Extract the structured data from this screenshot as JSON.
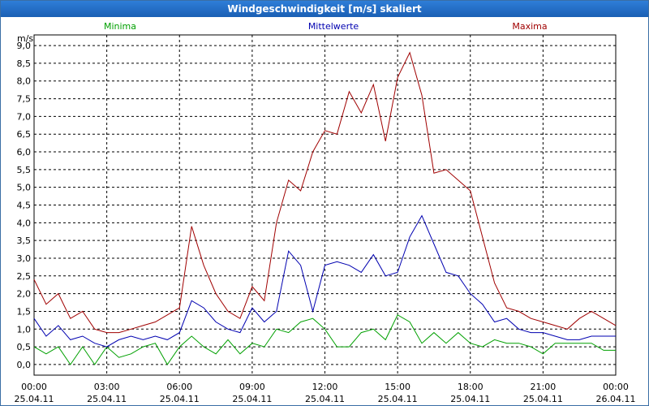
{
  "window": {
    "title": "Windgeschwindigkeit [m/s] skaliert"
  },
  "chart_data": {
    "type": "line",
    "title": "Windgeschwindigkeit [m/s] skaliert",
    "ylabel": "m/s",
    "xlabel": "",
    "ylim": [
      -0.3,
      9.3
    ],
    "xlim": [
      0,
      24
    ],
    "grid": true,
    "legend_position": "top",
    "y_ticks": [
      "0,0",
      "0,5",
      "1,0",
      "1,5",
      "2,0",
      "2,5",
      "3,0",
      "3,5",
      "4,0",
      "4,5",
      "5,0",
      "5,5",
      "6,0",
      "6,5",
      "7,0",
      "7,5",
      "8,0",
      "8,5",
      "9,0"
    ],
    "x_ticks": [
      {
        "time": "00:00",
        "date": "25.04.11"
      },
      {
        "time": "03:00",
        "date": "25.04.11"
      },
      {
        "time": "06:00",
        "date": "25.04.11"
      },
      {
        "time": "09:00",
        "date": "25.04.11"
      },
      {
        "time": "12:00",
        "date": "25.04.11"
      },
      {
        "time": "15:00",
        "date": "25.04.11"
      },
      {
        "time": "18:00",
        "date": "25.04.11"
      },
      {
        "time": "21:00",
        "date": "25.04.11"
      },
      {
        "time": "00:00",
        "date": "26.04.11"
      }
    ],
    "series": [
      {
        "name": "Minima",
        "color": "#00a000",
        "x": [
          0,
          0.5,
          1,
          1.5,
          2,
          2.5,
          3,
          3.5,
          4,
          4.5,
          5,
          5.5,
          6,
          6.5,
          7,
          7.5,
          8,
          8.5,
          9,
          9.5,
          10,
          10.5,
          11,
          11.5,
          12,
          12.5,
          13,
          13.5,
          14,
          14.5,
          15,
          15.5,
          16,
          16.5,
          17,
          17.5,
          18,
          18.5,
          19,
          19.5,
          20,
          20.5,
          21,
          21.5,
          22,
          22.5,
          23,
          23.5,
          24
        ],
        "values": [
          0.5,
          0.3,
          0.5,
          0.0,
          0.5,
          0.0,
          0.5,
          0.2,
          0.3,
          0.5,
          0.6,
          0.0,
          0.5,
          0.8,
          0.5,
          0.3,
          0.7,
          0.3,
          0.6,
          0.5,
          1.0,
          0.9,
          1.2,
          1.3,
          1.0,
          0.5,
          0.5,
          0.9,
          1.0,
          0.7,
          1.4,
          1.2,
          0.6,
          0.9,
          0.6,
          0.9,
          0.6,
          0.5,
          0.7,
          0.6,
          0.6,
          0.5,
          0.3,
          0.6,
          0.6,
          0.6,
          0.6,
          0.4,
          0.4
        ]
      },
      {
        "name": "Mittelwerte",
        "color": "#0000b0",
        "x": [
          0,
          0.5,
          1,
          1.5,
          2,
          2.5,
          3,
          3.5,
          4,
          4.5,
          5,
          5.5,
          6,
          6.5,
          7,
          7.5,
          8,
          8.5,
          9,
          9.5,
          10,
          10.5,
          11,
          11.5,
          12,
          12.5,
          13,
          13.5,
          14,
          14.5,
          15,
          15.5,
          16,
          16.5,
          17,
          17.5,
          18,
          18.5,
          19,
          19.5,
          20,
          20.5,
          21,
          21.5,
          22,
          22.5,
          23,
          23.5,
          24
        ],
        "values": [
          1.3,
          0.8,
          1.1,
          0.7,
          0.8,
          0.6,
          0.5,
          0.7,
          0.8,
          0.7,
          0.8,
          0.7,
          0.9,
          1.8,
          1.6,
          1.2,
          1.0,
          0.9,
          1.6,
          1.2,
          1.5,
          3.2,
          2.8,
          1.5,
          2.8,
          2.9,
          2.8,
          2.6,
          3.1,
          2.5,
          2.6,
          3.6,
          4.2,
          3.4,
          2.6,
          2.5,
          2.0,
          1.7,
          1.2,
          1.3,
          1.0,
          0.9,
          0.9,
          0.8,
          0.7,
          0.7,
          0.8,
          0.8,
          0.8
        ]
      },
      {
        "name": "Maxima",
        "color": "#a00000",
        "x": [
          0,
          0.5,
          1,
          1.5,
          2,
          2.5,
          3,
          3.5,
          4,
          4.5,
          5,
          5.5,
          6,
          6.5,
          7,
          7.5,
          8,
          8.5,
          9,
          9.5,
          10,
          10.5,
          11,
          11.5,
          12,
          12.5,
          13,
          13.5,
          14,
          14.5,
          15,
          15.5,
          16,
          16.5,
          17,
          17.5,
          18,
          18.5,
          19,
          19.5,
          20,
          20.5,
          21,
          21.5,
          22,
          22.5,
          23,
          23.5,
          24
        ],
        "values": [
          2.4,
          1.7,
          2.0,
          1.3,
          1.5,
          1.0,
          0.9,
          0.9,
          1.0,
          1.1,
          1.2,
          1.4,
          1.6,
          3.9,
          2.8,
          2.0,
          1.5,
          1.3,
          2.2,
          1.8,
          4.0,
          5.2,
          4.9,
          6.0,
          6.6,
          6.5,
          7.7,
          7.1,
          7.9,
          6.3,
          8.1,
          8.8,
          7.6,
          5.4,
          5.5,
          5.2,
          4.9,
          3.6,
          2.3,
          1.6,
          1.5,
          1.3,
          1.2,
          1.1,
          1.0,
          1.3,
          1.5,
          1.3,
          1.1
        ]
      }
    ]
  }
}
